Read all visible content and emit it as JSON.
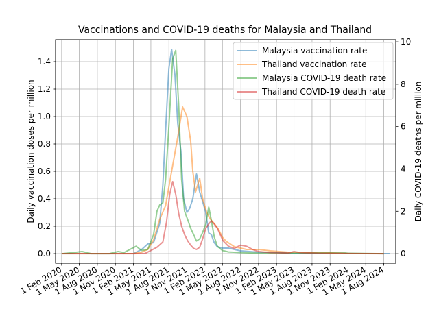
{
  "chart_data": {
    "type": "line",
    "title": "Vaccinations and COVID-19 deaths for Malaysia and Thailand",
    "xlabel": "",
    "ylabel_left": "Daily vaccination doses per million",
    "ylabel_right": "Daily COVID-19 deaths per million",
    "x_tick_labels": [
      "1 Feb 2020",
      "1 May 2020",
      "1 Aug 2020",
      "1 Nov 2020",
      "1 Feb 2021",
      "1 May 2021",
      "1 Aug 2021",
      "1 Nov 2021",
      "1 Feb 2022",
      "1 May 2022",
      "1 Aug 2022",
      "1 Nov 2022",
      "1 Feb 2023",
      "1 May 2023",
      "1 Aug 2023",
      "1 Nov 2023",
      "1 Feb 2024",
      "1 May 2024",
      "1 Aug 2024"
    ],
    "x_range": [
      "2020-01-01",
      "2024-10-01"
    ],
    "ylim_left": [
      -0.07,
      1.56
    ],
    "yticks_left": [
      "0.0",
      "0.2",
      "0.4",
      "0.6",
      "0.8",
      "1.0",
      "1.2",
      "1.4"
    ],
    "ylim_right": [
      -0.45,
      10.1
    ],
    "yticks_right": [
      "0",
      "2",
      "4",
      "6",
      "8",
      "10"
    ],
    "grid": true,
    "legend_position": "top-right",
    "series": [
      {
        "name": "Malaysia vaccination rate",
        "axis": "left",
        "color": "#1f77b4",
        "points": [
          [
            "2020-02-01",
            0
          ],
          [
            "2020-11-01",
            0
          ],
          [
            "2021-02-01",
            0
          ],
          [
            "2021-03-15",
            0.03
          ],
          [
            "2021-04-15",
            0.07
          ],
          [
            "2021-05-15",
            0.08
          ],
          [
            "2021-06-15",
            0.22
          ],
          [
            "2021-07-01",
            0.5
          ],
          [
            "2021-07-15",
            0.9
          ],
          [
            "2021-08-01",
            1.35
          ],
          [
            "2021-08-15",
            1.49
          ],
          [
            "2021-09-01",
            1.3
          ],
          [
            "2021-09-15",
            0.95
          ],
          [
            "2021-10-01",
            0.75
          ],
          [
            "2021-10-15",
            0.4
          ],
          [
            "2021-11-01",
            0.3
          ],
          [
            "2021-11-15",
            0.33
          ],
          [
            "2021-12-01",
            0.4
          ],
          [
            "2021-12-20",
            0.58
          ],
          [
            "2022-01-05",
            0.45
          ],
          [
            "2022-01-20",
            0.38
          ],
          [
            "2022-02-05",
            0.3
          ],
          [
            "2022-02-20",
            0.15
          ],
          [
            "2022-03-05",
            0.14
          ],
          [
            "2022-03-20",
            0.08
          ],
          [
            "2022-04-05",
            0.05
          ],
          [
            "2022-05-01",
            0.04
          ],
          [
            "2022-06-01",
            0.04
          ],
          [
            "2022-08-01",
            0.02
          ],
          [
            "2022-11-01",
            0.01
          ],
          [
            "2023-02-01",
            0.01
          ],
          [
            "2023-05-01",
            0
          ],
          [
            "2024-08-01",
            0
          ],
          [
            "2024-09-01",
            0
          ]
        ]
      },
      {
        "name": "Thailand vaccination rate",
        "axis": "left",
        "color": "#ff7f0e",
        "points": [
          [
            "2020-02-01",
            0
          ],
          [
            "2021-02-01",
            0
          ],
          [
            "2021-03-15",
            0.01
          ],
          [
            "2021-04-15",
            0.03
          ],
          [
            "2021-05-15",
            0.1
          ],
          [
            "2021-06-15",
            0.25
          ],
          [
            "2021-07-15",
            0.35
          ],
          [
            "2021-08-15",
            0.6
          ],
          [
            "2021-09-15",
            0.85
          ],
          [
            "2021-10-10",
            1.07
          ],
          [
            "2021-11-01",
            1.0
          ],
          [
            "2021-11-20",
            0.82
          ],
          [
            "2021-12-01",
            0.6
          ],
          [
            "2021-12-15",
            0.45
          ],
          [
            "2022-01-05",
            0.55
          ],
          [
            "2022-01-20",
            0.4
          ],
          [
            "2022-02-10",
            0.3
          ],
          [
            "2022-03-01",
            0.25
          ],
          [
            "2022-03-20",
            0.22
          ],
          [
            "2022-04-10",
            0.18
          ],
          [
            "2022-05-01",
            0.12
          ],
          [
            "2022-05-20",
            0.09
          ],
          [
            "2022-06-10",
            0.07
          ],
          [
            "2022-07-01",
            0.05
          ],
          [
            "2022-08-01",
            0.04
          ],
          [
            "2022-09-01",
            0.03
          ],
          [
            "2022-11-01",
            0.03
          ],
          [
            "2023-01-01",
            0.02
          ],
          [
            "2023-04-01",
            0.01
          ],
          [
            "2023-08-01",
            0.01
          ],
          [
            "2024-02-01",
            0
          ],
          [
            "2024-08-01",
            0
          ]
        ]
      },
      {
        "name": "Malaysia COVID-19 death rate",
        "axis": "right",
        "color": "#2ca02c",
        "points": [
          [
            "2020-02-01",
            0
          ],
          [
            "2020-04-01",
            0.05
          ],
          [
            "2020-05-15",
            0.1
          ],
          [
            "2020-07-01",
            0
          ],
          [
            "2020-10-01",
            0
          ],
          [
            "2020-11-15",
            0.1
          ],
          [
            "2020-12-15",
            0.05
          ],
          [
            "2021-01-15",
            0.2
          ],
          [
            "2021-02-15",
            0.35
          ],
          [
            "2021-03-15",
            0.15
          ],
          [
            "2021-04-15",
            0.2
          ],
          [
            "2021-05-15",
            0.9
          ],
          [
            "2021-06-01",
            2.0
          ],
          [
            "2021-06-15",
            2.3
          ],
          [
            "2021-07-01",
            2.4
          ],
          [
            "2021-07-15",
            3.5
          ],
          [
            "2021-08-01",
            6.0
          ],
          [
            "2021-08-20",
            9.2
          ],
          [
            "2021-09-05",
            9.6
          ],
          [
            "2021-09-20",
            7.0
          ],
          [
            "2021-10-05",
            3.5
          ],
          [
            "2021-10-20",
            2.0
          ],
          [
            "2021-11-05",
            1.6
          ],
          [
            "2021-11-20",
            1.2
          ],
          [
            "2021-12-05",
            0.9
          ],
          [
            "2021-12-20",
            0.6
          ],
          [
            "2022-01-05",
            0.7
          ],
          [
            "2022-01-20",
            1.0
          ],
          [
            "2022-02-05",
            1.4
          ],
          [
            "2022-02-20",
            2.2
          ],
          [
            "2022-03-05",
            1.6
          ],
          [
            "2022-03-20",
            0.8
          ],
          [
            "2022-04-05",
            0.35
          ],
          [
            "2022-05-01",
            0.15
          ],
          [
            "2022-06-01",
            0.08
          ],
          [
            "2022-08-01",
            0.05
          ],
          [
            "2022-11-01",
            0.02
          ],
          [
            "2023-02-01",
            0.03
          ],
          [
            "2023-04-01",
            0.02
          ],
          [
            "2024-01-01",
            0.05
          ],
          [
            "2024-02-01",
            0.02
          ],
          [
            "2024-08-01",
            0
          ]
        ]
      },
      {
        "name": "Thailand COVID-19 death rate",
        "axis": "right",
        "color": "#d62728",
        "points": [
          [
            "2020-02-01",
            0
          ],
          [
            "2020-11-01",
            0
          ],
          [
            "2021-02-01",
            0
          ],
          [
            "2021-04-01",
            0.01
          ],
          [
            "2021-05-01",
            0.15
          ],
          [
            "2021-06-01",
            0.3
          ],
          [
            "2021-07-01",
            0.55
          ],
          [
            "2021-07-20",
            1.5
          ],
          [
            "2021-08-05",
            2.8
          ],
          [
            "2021-08-20",
            3.4
          ],
          [
            "2021-09-05",
            2.8
          ],
          [
            "2021-09-20",
            1.9
          ],
          [
            "2021-10-05",
            1.3
          ],
          [
            "2021-10-20",
            0.9
          ],
          [
            "2021-11-05",
            0.6
          ],
          [
            "2021-11-20",
            0.4
          ],
          [
            "2021-12-05",
            0.25
          ],
          [
            "2021-12-20",
            0.2
          ],
          [
            "2022-01-05",
            0.3
          ],
          [
            "2022-01-20",
            0.7
          ],
          [
            "2022-02-05",
            1.2
          ],
          [
            "2022-02-20",
            1.4
          ],
          [
            "2022-03-05",
            1.55
          ],
          [
            "2022-03-20",
            1.4
          ],
          [
            "2022-04-05",
            1.2
          ],
          [
            "2022-04-20",
            0.9
          ],
          [
            "2022-05-05",
            0.6
          ],
          [
            "2022-06-01",
            0.35
          ],
          [
            "2022-07-01",
            0.25
          ],
          [
            "2022-08-01",
            0.4
          ],
          [
            "2022-09-01",
            0.35
          ],
          [
            "2022-10-01",
            0.2
          ],
          [
            "2022-11-01",
            0.1
          ],
          [
            "2023-01-01",
            0.05
          ],
          [
            "2023-04-01",
            0.03
          ],
          [
            "2023-05-01",
            0.1
          ],
          [
            "2023-06-01",
            0.05
          ],
          [
            "2023-09-01",
            0.02
          ],
          [
            "2024-01-01",
            0.01
          ],
          [
            "2024-08-01",
            0
          ]
        ]
      }
    ]
  }
}
